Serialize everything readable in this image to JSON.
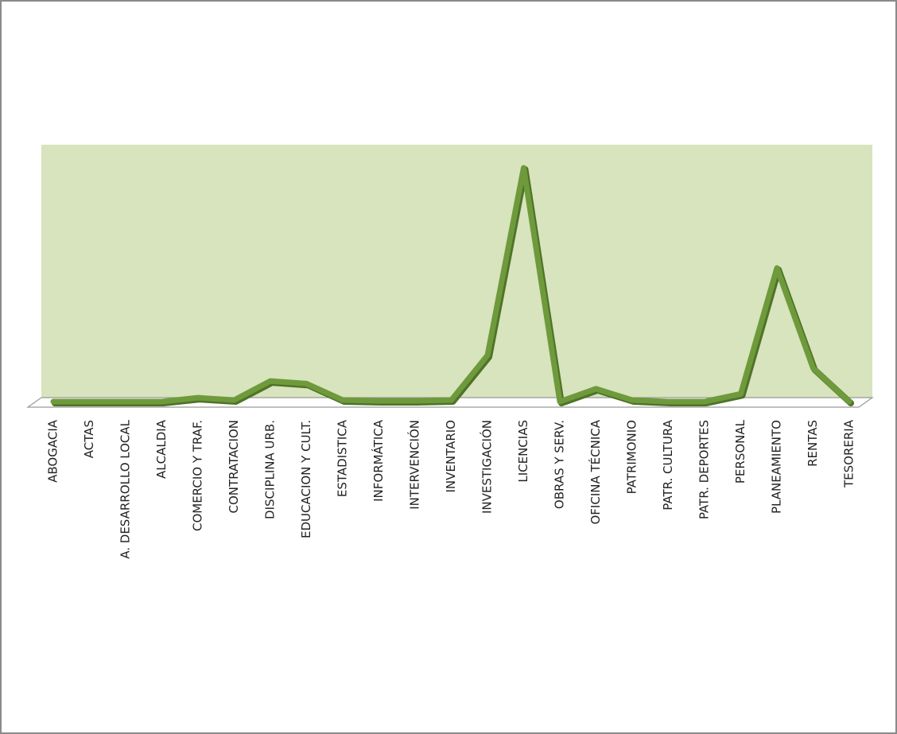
{
  "chart_data": {
    "type": "line",
    "categories": [
      "ABOGACIA",
      "ACTAS",
      "A. DESARROLLO LOCAL",
      "ALCALDIA",
      "COMERCIO Y TRAF.",
      "CONTRATACION",
      "DISCIPLINA URB.",
      "EDUCACION Y CULT.",
      "ESTADISTICA",
      "INFORMÁTICA",
      "INTERVENCIÓN",
      "INVENTARIO",
      "INVESTIGACIÓN",
      "LICENCIAS",
      "OBRAS Y SERV.",
      "OFICINA TÉCNICA",
      "PATRIMONIO",
      "PATR. CULTURA",
      "PATR. DEPORTES",
      "PERSONAL",
      "PLANEAMIENTO",
      "RENTAS",
      "TESORERIA"
    ],
    "values": [
      0,
      0,
      0,
      0,
      1.5,
      0.6,
      8,
      7,
      0.6,
      0.3,
      0.3,
      0.6,
      18,
      91,
      0,
      5,
      0.6,
      0,
      0,
      3,
      52,
      13,
      0
    ],
    "color": "#6f9a3c",
    "ylim": [
      0,
      100
    ]
  }
}
